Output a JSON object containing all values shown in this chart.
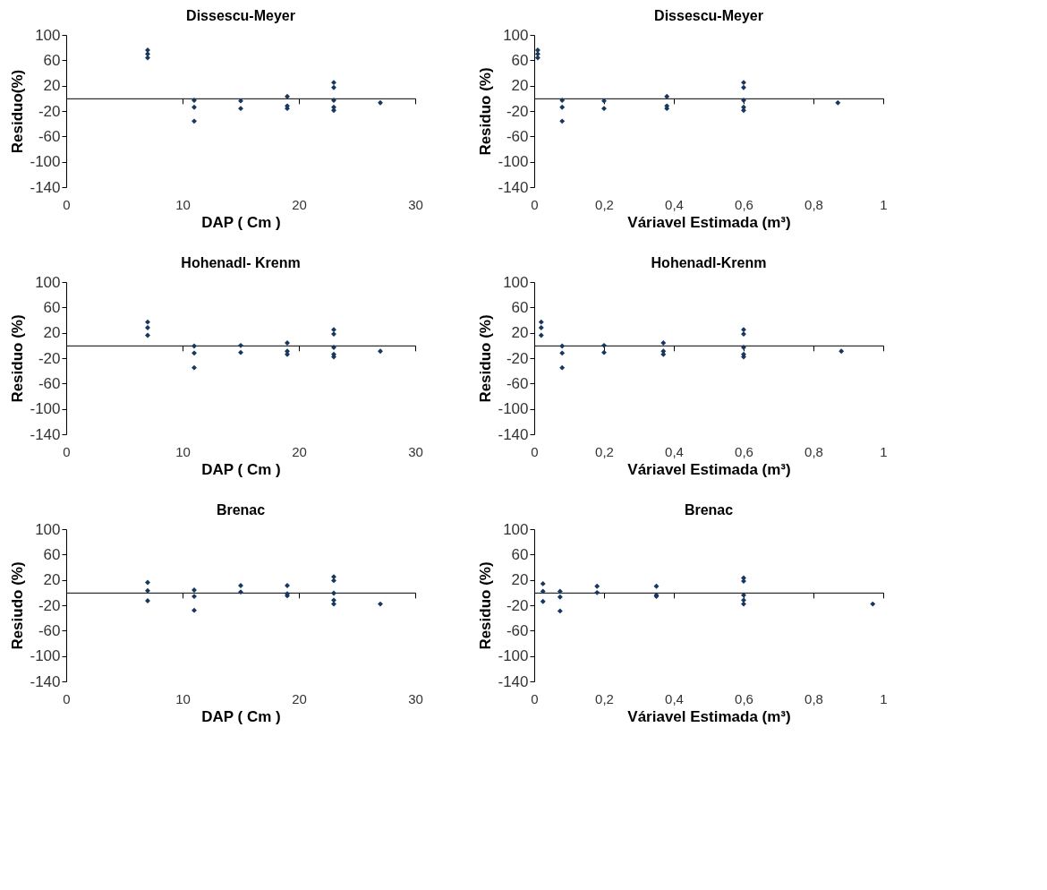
{
  "chart_data": [
    {
      "type": "scatter",
      "title": "Dissescu-Meyer",
      "xlabel": "DAP ( Cm )",
      "ylabel": "Residuo(%)",
      "marker": "diamond",
      "grid": false,
      "color": "#17375e",
      "x": [
        7,
        7,
        7,
        11,
        11,
        11,
        15,
        15,
        19,
        19,
        19,
        23,
        23,
        23,
        23,
        23,
        27
      ],
      "values": [
        76,
        70,
        64,
        -3,
        -14,
        -36,
        -4,
        -16,
        3,
        -12,
        -16,
        25,
        17,
        -3,
        -14,
        -19,
        -7
      ],
      "xlim": [
        0,
        30
      ],
      "xticks": [
        0,
        10,
        20,
        30
      ],
      "ylim": [
        -140,
        100
      ],
      "yticks": [
        100,
        60,
        20,
        -20,
        -60,
        -100,
        -140
      ]
    },
    {
      "type": "scatter",
      "title": "Dissescu-Meyer",
      "xlabel": "Váriavel Estimada (m³)",
      "ylabel": "Residuo (%)",
      "marker": "diamond",
      "grid": false,
      "color": "#17375e",
      "x": [
        0.01,
        0.01,
        0.01,
        0.08,
        0.08,
        0.08,
        0.2,
        0.2,
        0.38,
        0.38,
        0.38,
        0.6,
        0.6,
        0.6,
        0.6,
        0.6,
        0.87
      ],
      "values": [
        76,
        70,
        64,
        -3,
        -14,
        -36,
        -4,
        -16,
        3,
        -12,
        -16,
        25,
        17,
        -3,
        -14,
        -19,
        -7
      ],
      "xlim": [
        0,
        1
      ],
      "xticks": [
        0,
        {
          "value": 0.2,
          "label": "0,2"
        },
        {
          "value": 0.4,
          "label": "0,4"
        },
        {
          "value": 0.6,
          "label": "0,6"
        },
        {
          "value": 0.8,
          "label": "0,8"
        },
        1
      ],
      "ylim": [
        -140,
        100
      ],
      "yticks": [
        100,
        60,
        20,
        -20,
        -60,
        -100,
        -140
      ]
    },
    {
      "type": "scatter",
      "title": "Hohenadl- Krenm",
      "xlabel": "DAP ( Cm )",
      "ylabel": "Residuo (%)",
      "marker": "diamond",
      "grid": false,
      "color": "#17375e",
      "x": [
        7,
        7,
        7,
        11,
        11,
        11,
        15,
        15,
        19,
        19,
        19,
        23,
        23,
        23,
        23,
        23,
        27
      ],
      "values": [
        37,
        28,
        16,
        -1,
        -12,
        -35,
        0,
        -11,
        4,
        -9,
        -14,
        25,
        18,
        -3,
        -14,
        -18,
        -9
      ],
      "xlim": [
        0,
        30
      ],
      "xticks": [
        0,
        10,
        20,
        30
      ],
      "ylim": [
        -140,
        100
      ],
      "yticks": [
        100,
        60,
        20,
        -20,
        -60,
        -100,
        -140
      ]
    },
    {
      "type": "scatter",
      "title": "Hohenadl-Krenm",
      "xlabel": "Váriavel Estimada (m³)",
      "ylabel": "Residuo (%)",
      "marker": "diamond",
      "grid": false,
      "color": "#17375e",
      "x": [
        0.02,
        0.02,
        0.02,
        0.08,
        0.08,
        0.08,
        0.2,
        0.2,
        0.37,
        0.37,
        0.37,
        0.6,
        0.6,
        0.6,
        0.6,
        0.6,
        0.88
      ],
      "values": [
        37,
        28,
        16,
        -1,
        -12,
        -35,
        0,
        -11,
        4,
        -9,
        -14,
        25,
        18,
        -3,
        -14,
        -18,
        -9
      ],
      "xlim": [
        0,
        1
      ],
      "xticks": [
        0,
        {
          "value": 0.2,
          "label": "0,2"
        },
        {
          "value": 0.4,
          "label": "0,4"
        },
        {
          "value": 0.6,
          "label": "0,6"
        },
        {
          "value": 0.8,
          "label": "0,8"
        },
        1
      ],
      "ylim": [
        -140,
        100
      ],
      "yticks": [
        100,
        60,
        20,
        -20,
        -60,
        -100,
        -140
      ]
    },
    {
      "type": "scatter",
      "title": "Brenac",
      "xlabel": "DAP ( Cm )",
      "ylabel": "Resiudo (%)",
      "marker": "diamond",
      "grid": false,
      "color": "#17375e",
      "x": [
        7,
        7,
        7,
        11,
        11,
        11,
        15,
        15,
        19,
        19,
        19,
        23,
        23,
        23,
        23,
        23,
        27
      ],
      "values": [
        16,
        3,
        -13,
        4,
        -6,
        -28,
        11,
        1,
        11,
        -2,
        -5,
        25,
        19,
        -1,
        -12,
        -18,
        -18
      ],
      "xlim": [
        0,
        30
      ],
      "xticks": [
        0,
        10,
        20,
        30
      ],
      "ylim": [
        -140,
        100
      ],
      "yticks": [
        100,
        60,
        20,
        -20,
        -60,
        -100,
        -140
      ]
    },
    {
      "type": "scatter",
      "title": "Brenac",
      "xlabel": "Váriavel Estimada (m³)",
      "ylabel": "Residuo (%)",
      "marker": "diamond",
      "grid": false,
      "color": "#17375e",
      "x": [
        0.025,
        0.025,
        0.025,
        0.074,
        0.074,
        0.074,
        0.18,
        0.18,
        0.35,
        0.35,
        0.35,
        0.6,
        0.6,
        0.6,
        0.6,
        0.6,
        0.97
      ],
      "values": [
        14,
        2,
        -14,
        2,
        -7,
        -29,
        10,
        0,
        10,
        -4,
        -6,
        23,
        18,
        -4,
        -12,
        -18,
        -18
      ],
      "xlim": [
        0,
        1
      ],
      "xticks": [
        0,
        {
          "value": 0.2,
          "label": "0,2"
        },
        {
          "value": 0.4,
          "label": "0,4"
        },
        {
          "value": 0.6,
          "label": "0,6"
        },
        {
          "value": 0.8,
          "label": "0,8"
        },
        1
      ],
      "ylim": [
        -140,
        100
      ],
      "yticks": [
        100,
        60,
        20,
        -20,
        -60,
        -100,
        -140
      ]
    }
  ]
}
